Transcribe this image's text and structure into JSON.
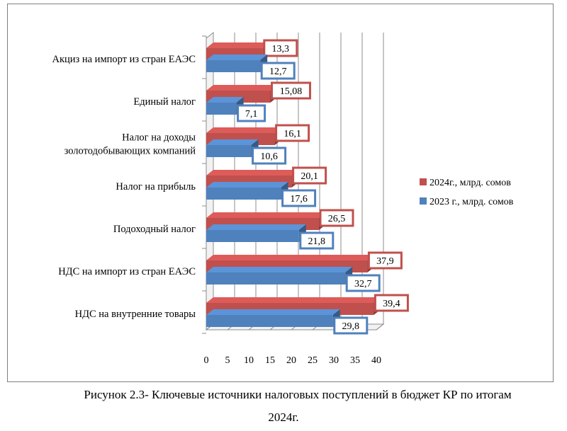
{
  "chart_data": {
    "type": "bar",
    "orientation": "horizontal",
    "categories": [
      "Акциз на импорт из стран ЕАЭС",
      "Единый налог",
      "Налог на доходы золотодобывающих компаний",
      "Налог на прибыль",
      "Подоходный налог",
      "НДС на импорт из стран ЕАЭС",
      "НДС на внутренние товары"
    ],
    "category_lines": [
      [
        "Акциз на импорт из стран ЕАЭС"
      ],
      [
        "Единый налог"
      ],
      [
        "Налог на доходы",
        "золотодобывающих компаний"
      ],
      [
        "Налог на прибыль"
      ],
      [
        "Подоходный налог"
      ],
      [
        "НДС на импорт из стран ЕАЭС"
      ],
      [
        "НДС на внутренние товары"
      ]
    ],
    "series": [
      {
        "name": "2024г., млрд. сомов",
        "color": "#c0504d",
        "values": [
          13.3,
          15.08,
          16.1,
          20.1,
          26.5,
          37.9,
          39.4
        ],
        "labels": [
          "13,3",
          "15,08",
          "16,1",
          "20,1",
          "26,5",
          "37,9",
          "39,4"
        ]
      },
      {
        "name": "2023 г., млрд. сомов",
        "color": "#4f81bd",
        "values": [
          12.7,
          7.1,
          10.6,
          17.6,
          21.8,
          32.7,
          29.8
        ],
        "labels": [
          "12,7",
          "7,1",
          "10,6",
          "17,6",
          "21,8",
          "32,7",
          "29,8"
        ]
      }
    ],
    "x_ticks": [
      "0",
      "5",
      "10",
      "15",
      "20",
      "25",
      "30",
      "35",
      "40"
    ],
    "xlim": [
      0,
      40
    ],
    "grid": true,
    "legend_position": "right"
  },
  "caption": {
    "line1": "Рисунок 2.3- Ключевые источники налоговых поступлений в бюджет КР по итогам",
    "line2": "2024г."
  }
}
